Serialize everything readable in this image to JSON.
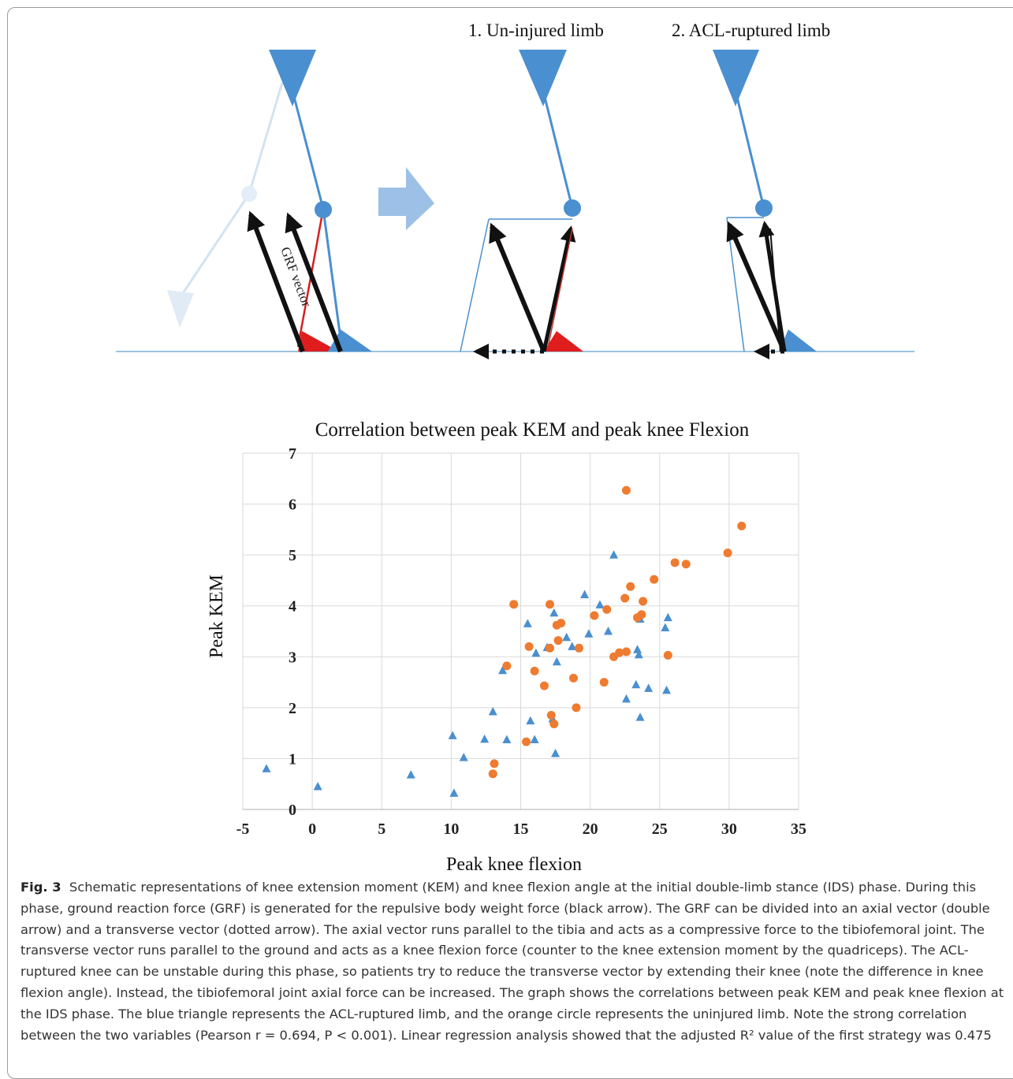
{
  "schematic": {
    "label_uninjured": "1. Un-injured limb",
    "label_acl": "2. ACL-ruptured limb",
    "grf_label": "GRF vector"
  },
  "chart_data": {
    "type": "scatter",
    "title": "Correlation between peak KEM and peak knee Flexion",
    "xlabel": "Peak knee flexion",
    "ylabel": "Peak KEM",
    "xlim": [
      -5,
      35
    ],
    "ylim": [
      0,
      7
    ],
    "xticks": [
      "-5",
      "0",
      "5",
      "10",
      "15",
      "20",
      "25",
      "30",
      "35"
    ],
    "yticks": [
      "0",
      "1",
      "2",
      "3",
      "4",
      "5",
      "6",
      "7"
    ],
    "grid": true,
    "legend": "none",
    "series": [
      {
        "marker": "triangle",
        "color": "#4a8fd0",
        "points": [
          [
            -3.3,
            0.8
          ],
          [
            0.4,
            0.45
          ],
          [
            7.1,
            0.68
          ],
          [
            10.1,
            1.45
          ],
          [
            10.2,
            0.32
          ],
          [
            10.9,
            1.02
          ],
          [
            12.4,
            1.38
          ],
          [
            13.0,
            1.92
          ],
          [
            13.7,
            2.73
          ],
          [
            14.0,
            1.37
          ],
          [
            15.5,
            3.65
          ],
          [
            15.7,
            1.74
          ],
          [
            16.0,
            1.37
          ],
          [
            16.1,
            3.07
          ],
          [
            16.9,
            3.18
          ],
          [
            17.3,
            1.78
          ],
          [
            17.4,
            3.86
          ],
          [
            17.5,
            1.1
          ],
          [
            17.6,
            2.9
          ],
          [
            18.3,
            3.38
          ],
          [
            18.7,
            3.2
          ],
          [
            19.6,
            4.22
          ],
          [
            19.9,
            3.45
          ],
          [
            20.7,
            4.02
          ],
          [
            21.3,
            3.5
          ],
          [
            21.7,
            5.0
          ],
          [
            22.6,
            2.17
          ],
          [
            23.3,
            2.45
          ],
          [
            23.4,
            3.14
          ],
          [
            23.5,
            3.04
          ],
          [
            23.6,
            1.81
          ],
          [
            23.6,
            3.74
          ],
          [
            24.2,
            2.38
          ],
          [
            25.4,
            3.57
          ],
          [
            25.5,
            2.34
          ],
          [
            25.6,
            3.77
          ]
        ]
      },
      {
        "marker": "circle",
        "color": "#ee7b30",
        "points": [
          [
            13.0,
            0.7
          ],
          [
            13.1,
            0.9
          ],
          [
            14.0,
            2.82
          ],
          [
            14.5,
            4.03
          ],
          [
            15.4,
            1.33
          ],
          [
            15.6,
            3.2
          ],
          [
            16.0,
            2.72
          ],
          [
            16.7,
            2.43
          ],
          [
            17.1,
            4.03
          ],
          [
            17.1,
            3.17
          ],
          [
            17.2,
            1.85
          ],
          [
            17.4,
            1.68
          ],
          [
            17.6,
            3.62
          ],
          [
            17.7,
            3.32
          ],
          [
            17.9,
            3.66
          ],
          [
            18.8,
            2.58
          ],
          [
            19.0,
            2.0
          ],
          [
            19.2,
            3.17
          ],
          [
            20.3,
            3.81
          ],
          [
            21.0,
            2.5
          ],
          [
            21.2,
            3.93
          ],
          [
            21.7,
            3.0
          ],
          [
            22.1,
            3.08
          ],
          [
            22.5,
            4.15
          ],
          [
            22.6,
            3.1
          ],
          [
            22.6,
            6.27
          ],
          [
            22.9,
            4.38
          ],
          [
            23.4,
            3.77
          ],
          [
            23.7,
            3.83
          ],
          [
            23.8,
            4.09
          ],
          [
            24.6,
            4.52
          ],
          [
            25.6,
            3.03
          ],
          [
            26.1,
            4.85
          ],
          [
            26.9,
            4.82
          ],
          [
            29.9,
            5.04
          ],
          [
            30.9,
            5.57
          ]
        ]
      }
    ]
  },
  "caption": {
    "label": "Fig. 3",
    "text": "Schematic representations of knee extension moment (KEM) and knee flexion angle at the initial double-limb stance (IDS) phase. During this phase, ground reaction force (GRF) is generated for the repulsive body weight force (black arrow). The GRF can be divided into an axial vector (double arrow) and a transverse vector (dotted arrow). The axial vector runs parallel to the tibia and acts as a compressive force to the tibiofemoral joint. The transverse vector runs parallel to the ground and acts as a knee flexion force (counter to the knee extension moment by the quadriceps). The ACL-ruptured knee can be unstable during this phase, so patients try to reduce the transverse vector by extending their knee (note the difference in knee flexion angle). Instead, the tibiofemoral joint axial force can be increased. The graph shows the correlations between peak KEM and peak knee flexion at the IDS phase. The blue triangle represents the ACL-ruptured limb, and the orange circle represents the uninjured limb. Note the strong correlation between the two variables (Pearson r = 0.694, P < 0.001). Linear regression analysis showed that the adjusted R² value of the first strategy was 0.475"
  }
}
